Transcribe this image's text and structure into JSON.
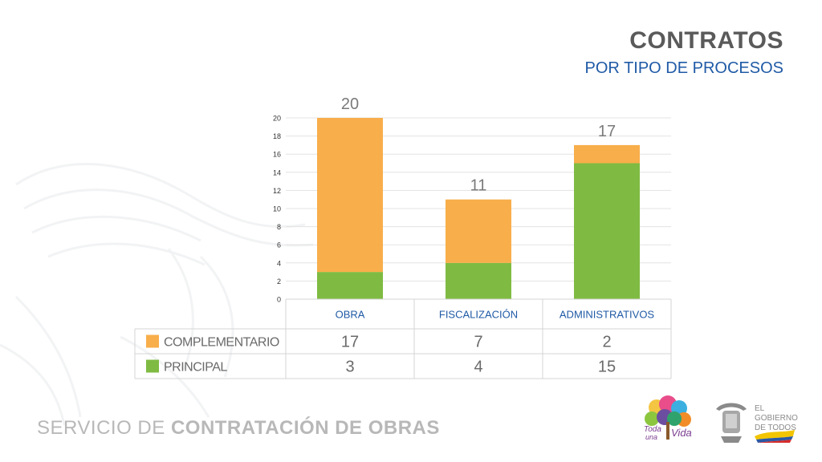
{
  "header": {
    "title": "CONTRATOS",
    "subtitle": "POR TIPO DE PROCESOS"
  },
  "footer": {
    "prefix": "SERVICIO DE ",
    "emphasis": "CONTRATACIÓN DE OBRAS"
  },
  "logos": {
    "vida_line1": "Toda",
    "vida_line2": "una",
    "vida_line3": "Vida",
    "gobierno_line1": "EL",
    "gobierno_line2": "GOBIERNO",
    "gobierno_line3": "DE TODOS"
  },
  "colors": {
    "complementario": "#f8ae4a",
    "principal": "#7fbb42",
    "title_gray": "#5a5a5a",
    "accent_blue": "#1f5aa6"
  },
  "chart_data": {
    "type": "bar",
    "stacked": true,
    "categories": [
      "OBRA",
      "FISCALIZACIÓN",
      "ADMINISTRATIVOS"
    ],
    "series": [
      {
        "name": "PRINCIPAL",
        "values": [
          3,
          4,
          15
        ],
        "color": "#7fbb42"
      },
      {
        "name": "COMPLEMENTARIO",
        "values": [
          17,
          7,
          2
        ],
        "color": "#f8ae4a"
      }
    ],
    "totals": [
      20,
      11,
      17
    ],
    "ylim": [
      0,
      20
    ],
    "yticks": [
      0,
      2,
      4,
      6,
      8,
      10,
      12,
      14,
      16,
      18,
      20
    ],
    "grid": true,
    "legend": "data-table-below"
  }
}
